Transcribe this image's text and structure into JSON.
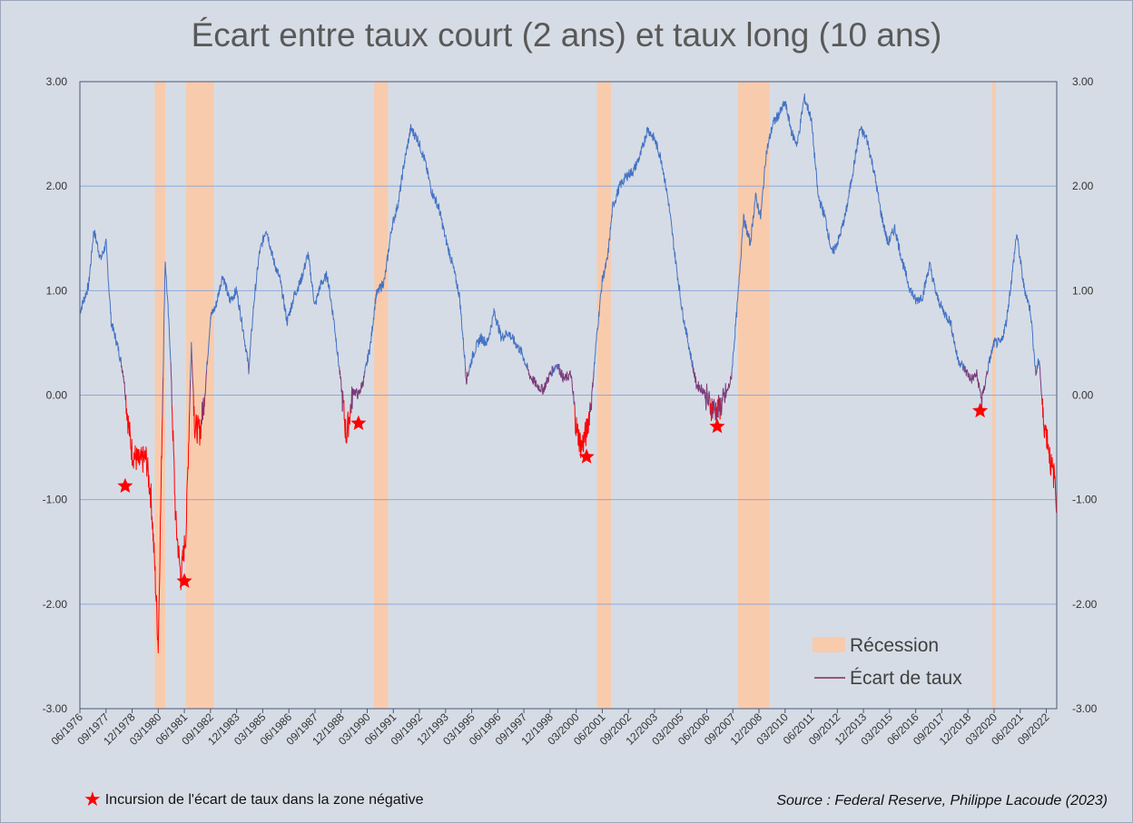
{
  "chart_data": {
    "type": "line",
    "title": "Écart entre taux court (2 ans) et taux long (10 ans)",
    "ylim": [
      -3.0,
      3.0
    ],
    "y_ticks": [
      "3.00",
      "2.00",
      "1.00",
      "0.00",
      "-1.00",
      "-2.00",
      "-3.00"
    ],
    "y_tick_values": [
      3,
      2,
      1,
      0,
      -1,
      -2,
      -3
    ],
    "x_range": [
      "1976-06",
      "2023-03"
    ],
    "x_ticks": [
      "06/1976",
      "09/1977",
      "12/1978",
      "03/1980",
      "06/1981",
      "09/1982",
      "12/1983",
      "03/1985",
      "06/1986",
      "09/1987",
      "12/1988",
      "03/1990",
      "06/1991",
      "09/1992",
      "12/1993",
      "03/1995",
      "06/1996",
      "09/1997",
      "12/1998",
      "03/2000",
      "06/2001",
      "09/2002",
      "12/2003",
      "03/2005",
      "06/2006",
      "09/2007",
      "12/2008",
      "03/2010",
      "06/2011",
      "09/2012",
      "12/2013",
      "03/2015",
      "06/2016",
      "09/2017",
      "12/2018",
      "03/2020",
      "06/2021",
      "09/2022"
    ],
    "grid": true,
    "legend_position": "bottom-right",
    "colors": {
      "positive": "#4472c4",
      "negative": "#ff0000",
      "recession": "#f8cbad",
      "legend_line": "#7b2c5a",
      "grid": "#8ea9db"
    },
    "series": [
      {
        "name": "Écart de taux",
        "points": [
          [
            "1976-06",
            0.8
          ],
          [
            "1976-11",
            1.05
          ],
          [
            "1977-02",
            1.58
          ],
          [
            "1977-06",
            1.3
          ],
          [
            "1977-09",
            1.45
          ],
          [
            "1977-12",
            0.7
          ],
          [
            "1978-04",
            0.45
          ],
          [
            "1978-07",
            0.2
          ],
          [
            "1978-10",
            -0.3
          ],
          [
            "1978-12",
            -0.55
          ],
          [
            "1979-04",
            -0.65
          ],
          [
            "1979-08",
            -0.6
          ],
          [
            "1979-11",
            -1.0
          ],
          [
            "1980-01",
            -1.65
          ],
          [
            "1980-03",
            -2.4
          ],
          [
            "1980-05",
            -0.5
          ],
          [
            "1980-07",
            1.3
          ],
          [
            "1980-10",
            0.4
          ],
          [
            "1981-01",
            -1.2
          ],
          [
            "1981-04",
            -1.75
          ],
          [
            "1981-07",
            -1.3
          ],
          [
            "1981-10",
            0.5
          ],
          [
            "1981-12",
            -0.3
          ],
          [
            "1982-03",
            -0.35
          ],
          [
            "1982-06",
            0.05
          ],
          [
            "1982-09",
            0.75
          ],
          [
            "1982-12",
            0.85
          ],
          [
            "1983-04",
            1.15
          ],
          [
            "1983-08",
            0.9
          ],
          [
            "1983-12",
            1.0
          ],
          [
            "1984-04",
            0.6
          ],
          [
            "1984-07",
            0.25
          ],
          [
            "1984-10",
            0.9
          ],
          [
            "1985-01",
            1.35
          ],
          [
            "1985-05",
            1.6
          ],
          [
            "1985-09",
            1.3
          ],
          [
            "1986-01",
            1.1
          ],
          [
            "1986-05",
            0.7
          ],
          [
            "1986-09",
            0.95
          ],
          [
            "1987-01",
            1.1
          ],
          [
            "1987-05",
            1.35
          ],
          [
            "1987-09",
            0.85
          ],
          [
            "1987-12",
            1.05
          ],
          [
            "1988-04",
            1.15
          ],
          [
            "1988-08",
            0.7
          ],
          [
            "1988-12",
            0.1
          ],
          [
            "1989-03",
            -0.4
          ],
          [
            "1989-07",
            0.05
          ],
          [
            "1989-10",
            0.0
          ],
          [
            "1990-01",
            0.15
          ],
          [
            "1990-05",
            0.5
          ],
          [
            "1990-08",
            0.95
          ],
          [
            "1991-01",
            1.1
          ],
          [
            "1991-05",
            1.6
          ],
          [
            "1991-09",
            1.85
          ],
          [
            "1991-12",
            2.2
          ],
          [
            "1992-04",
            2.55
          ],
          [
            "1992-08",
            2.45
          ],
          [
            "1992-12",
            2.25
          ],
          [
            "1993-04",
            1.95
          ],
          [
            "1993-08",
            1.8
          ],
          [
            "1993-12",
            1.5
          ],
          [
            "1994-04",
            1.25
          ],
          [
            "1994-08",
            0.95
          ],
          [
            "1994-12",
            0.15
          ],
          [
            "1995-04",
            0.4
          ],
          [
            "1995-08",
            0.55
          ],
          [
            "1995-12",
            0.5
          ],
          [
            "1996-04",
            0.8
          ],
          [
            "1996-08",
            0.55
          ],
          [
            "1996-12",
            0.6
          ],
          [
            "1997-04",
            0.5
          ],
          [
            "1997-08",
            0.4
          ],
          [
            "1997-12",
            0.2
          ],
          [
            "1998-04",
            0.1
          ],
          [
            "1998-08",
            0.05
          ],
          [
            "1998-12",
            0.2
          ],
          [
            "1999-04",
            0.3
          ],
          [
            "1999-08",
            0.15
          ],
          [
            "1999-12",
            0.2
          ],
          [
            "2000-03",
            -0.3
          ],
          [
            "2000-06",
            -0.5
          ],
          [
            "2000-09",
            -0.35
          ],
          [
            "2000-12",
            0.0
          ],
          [
            "2001-03",
            0.6
          ],
          [
            "2001-06",
            1.1
          ],
          [
            "2001-09",
            1.3
          ],
          [
            "2001-12",
            1.8
          ],
          [
            "2002-04",
            2.0
          ],
          [
            "2002-08",
            2.1
          ],
          [
            "2002-12",
            2.15
          ],
          [
            "2003-04",
            2.3
          ],
          [
            "2003-08",
            2.55
          ],
          [
            "2003-12",
            2.45
          ],
          [
            "2004-04",
            2.25
          ],
          [
            "2004-08",
            1.85
          ],
          [
            "2004-12",
            1.3
          ],
          [
            "2005-04",
            0.8
          ],
          [
            "2005-08",
            0.45
          ],
          [
            "2005-12",
            0.1
          ],
          [
            "2006-04",
            0.05
          ],
          [
            "2006-08",
            -0.1
          ],
          [
            "2006-12",
            -0.15
          ],
          [
            "2007-04",
            -0.05
          ],
          [
            "2007-08",
            0.15
          ],
          [
            "2007-12",
            0.95
          ],
          [
            "2008-03",
            1.7
          ],
          [
            "2008-07",
            1.45
          ],
          [
            "2008-10",
            1.9
          ],
          [
            "2009-01",
            1.7
          ],
          [
            "2009-04",
            2.3
          ],
          [
            "2009-08",
            2.6
          ],
          [
            "2009-12",
            2.7
          ],
          [
            "2010-03",
            2.8
          ],
          [
            "2010-07",
            2.5
          ],
          [
            "2010-10",
            2.4
          ],
          [
            "2011-02",
            2.85
          ],
          [
            "2011-06",
            2.65
          ],
          [
            "2011-10",
            1.9
          ],
          [
            "2012-02",
            1.7
          ],
          [
            "2012-06",
            1.35
          ],
          [
            "2012-10",
            1.5
          ],
          [
            "2013-02",
            1.75
          ],
          [
            "2013-06",
            2.15
          ],
          [
            "2013-10",
            2.55
          ],
          [
            "2014-02",
            2.45
          ],
          [
            "2014-06",
            2.15
          ],
          [
            "2014-10",
            1.75
          ],
          [
            "2015-02",
            1.45
          ],
          [
            "2015-06",
            1.6
          ],
          [
            "2015-10",
            1.3
          ],
          [
            "2016-02",
            1.05
          ],
          [
            "2016-06",
            0.9
          ],
          [
            "2016-10",
            0.95
          ],
          [
            "2017-02",
            1.25
          ],
          [
            "2017-06",
            0.95
          ],
          [
            "2017-10",
            0.8
          ],
          [
            "2018-02",
            0.7
          ],
          [
            "2018-06",
            0.35
          ],
          [
            "2018-10",
            0.25
          ],
          [
            "2019-02",
            0.15
          ],
          [
            "2019-05",
            0.2
          ],
          [
            "2019-08",
            -0.05
          ],
          [
            "2019-12",
            0.3
          ],
          [
            "2020-03",
            0.5
          ],
          [
            "2020-07",
            0.5
          ],
          [
            "2020-10",
            0.7
          ],
          [
            "2021-01",
            1.1
          ],
          [
            "2021-04",
            1.55
          ],
          [
            "2021-08",
            1.05
          ],
          [
            "2021-12",
            0.8
          ],
          [
            "2022-03",
            0.2
          ],
          [
            "2022-05",
            0.35
          ],
          [
            "2022-07",
            -0.2
          ],
          [
            "2022-10",
            -0.45
          ],
          [
            "2022-12",
            -0.7
          ],
          [
            "2023-02",
            -0.8
          ],
          [
            "2023-03",
            -1.05
          ]
        ]
      }
    ],
    "recessions": [
      {
        "start": "1980-01",
        "end": "1980-07"
      },
      {
        "start": "1981-07",
        "end": "1982-11"
      },
      {
        "start": "1990-07",
        "end": "1991-03"
      },
      {
        "start": "2001-03",
        "end": "2001-11"
      },
      {
        "start": "2007-12",
        "end": "2009-06"
      },
      {
        "start": "2020-02",
        "end": "2020-04"
      }
    ],
    "incursion_markers": [
      [
        "1978-08",
        -0.87
      ],
      [
        "1981-06",
        -1.78
      ],
      [
        "1989-10",
        -0.27
      ],
      [
        "2000-09",
        -0.59
      ],
      [
        "2006-12",
        -0.3
      ],
      [
        "2019-07",
        -0.15
      ]
    ],
    "legend": {
      "recession": "Récession",
      "series": "Écart de taux"
    }
  },
  "footnote": {
    "star": "★",
    "text": "Incursion de l'écart de taux dans la zone négative"
  },
  "source": "Source : Federal Reserve, Philippe Lacoude (2023)"
}
